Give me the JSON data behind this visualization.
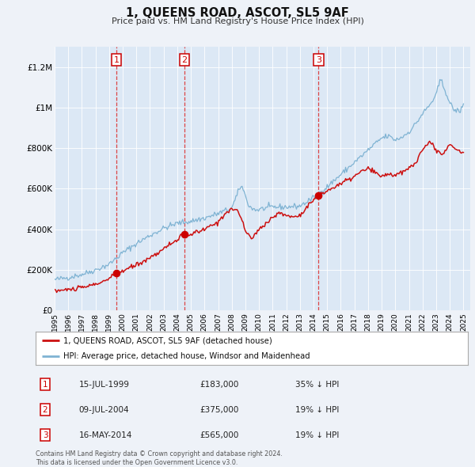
{
  "title": "1, QUEENS ROAD, ASCOT, SL5 9AF",
  "subtitle": "Price paid vs. HM Land Registry's House Price Index (HPI)",
  "background_color": "#eef2f8",
  "plot_background": "#dce8f5",
  "ylim": [
    0,
    1300000
  ],
  "yticks": [
    0,
    200000,
    400000,
    600000,
    800000,
    1000000,
    1200000
  ],
  "ytick_labels": [
    "£0",
    "£200K",
    "£400K",
    "£600K",
    "£800K",
    "£1M",
    "£1.2M"
  ],
  "xlim_start": 1995.0,
  "xlim_end": 2025.5,
  "xticks": [
    1995,
    1996,
    1997,
    1998,
    1999,
    2000,
    2001,
    2002,
    2003,
    2004,
    2005,
    2006,
    2007,
    2008,
    2009,
    2010,
    2011,
    2012,
    2013,
    2014,
    2015,
    2016,
    2017,
    2018,
    2019,
    2020,
    2021,
    2022,
    2023,
    2024,
    2025
  ],
  "red_line_color": "#cc1111",
  "blue_line_color": "#7fb3d3",
  "sale_marker_color": "#cc0000",
  "vline_color": "#dd3333",
  "annotations": [
    {
      "n": 1,
      "year": 1999.54,
      "price": 183000
    },
    {
      "n": 2,
      "year": 2004.52,
      "price": 375000
    },
    {
      "n": 3,
      "year": 2014.37,
      "price": 565000
    }
  ],
  "legend_entries": [
    "1, QUEENS ROAD, ASCOT, SL5 9AF (detached house)",
    "HPI: Average price, detached house, Windsor and Maidenhead"
  ],
  "table_rows": [
    {
      "n": 1,
      "date": "15-JUL-1999",
      "price": "£183,000",
      "pct": "35% ↓ HPI"
    },
    {
      "n": 2,
      "date": "09-JUL-2004",
      "price": "£375,000",
      "pct": "19% ↓ HPI"
    },
    {
      "n": 3,
      "date": "16-MAY-2014",
      "price": "£565,000",
      "pct": "19% ↓ HPI"
    }
  ],
  "footer": "Contains HM Land Registry data © Crown copyright and database right 2024.\nThis data is licensed under the Open Government Licence v3.0."
}
